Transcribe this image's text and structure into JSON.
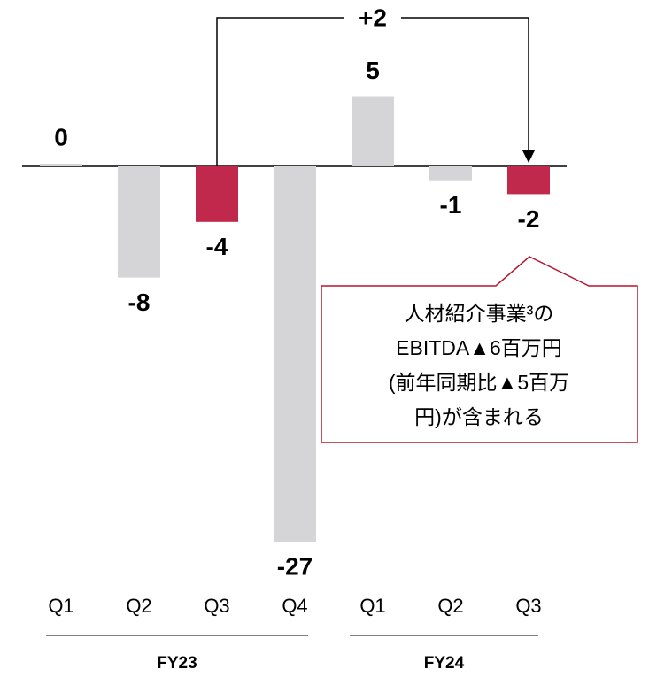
{
  "chart_data": {
    "type": "bar",
    "categories": [
      "Q1",
      "Q2",
      "Q3",
      "Q4",
      "Q1",
      "Q2",
      "Q3"
    ],
    "values": [
      0,
      -8,
      -4,
      -27,
      5,
      -1,
      -2
    ],
    "colors": [
      "#d5d5d7",
      "#d5d5d7",
      "#c1294c",
      "#d5d5d7",
      "#d5d5d7",
      "#d5d5d7",
      "#c1294c"
    ],
    "groups": [
      "FY23",
      "FY24"
    ],
    "bracket_label": "+2",
    "callout": [
      "人材紹介事業³の",
      "EBITDA▲6百万円",
      "(前年同期比▲5百万",
      "円)が含まれる"
    ]
  }
}
